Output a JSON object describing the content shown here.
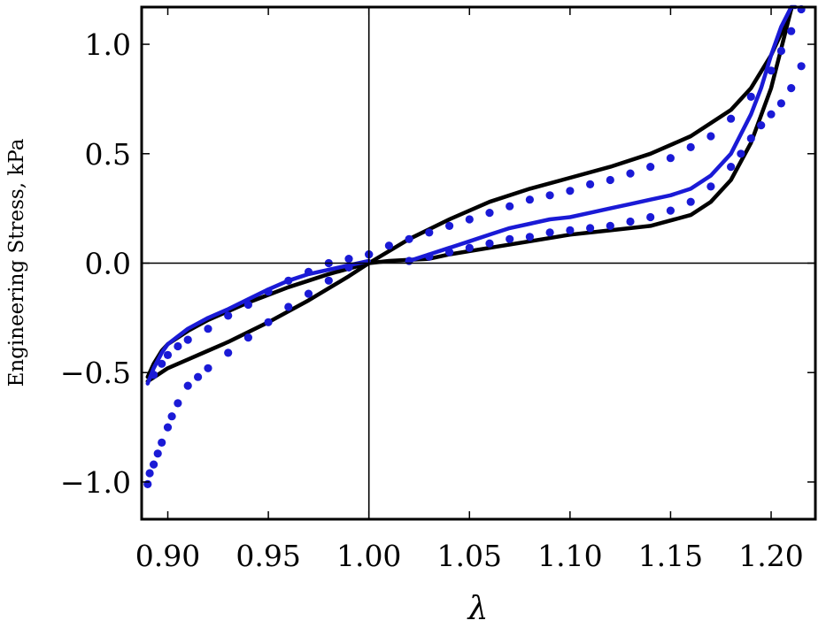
{
  "chart_data": {
    "type": "line",
    "title": "",
    "xlabel": "λ",
    "ylabel": "Engineering Stress, kPa",
    "xlim": [
      0.887,
      1.222
    ],
    "ylim": [
      -1.17,
      1.17
    ],
    "xticks": [
      0.9,
      0.95,
      1.0,
      1.05,
      1.1,
      1.15,
      1.2
    ],
    "xtick_labels": [
      "0.90",
      "0.95",
      "1.00",
      "1.05",
      "1.10",
      "1.15",
      "1.20"
    ],
    "yticks": [
      -1.0,
      -0.5,
      0.0,
      0.5,
      1.0
    ],
    "ytick_labels": [
      "−1.0",
      "−0.5",
      "0.0",
      "0.5",
      "1.0"
    ],
    "grid": false,
    "legend": "none",
    "colors": {
      "model": "#000000",
      "fit": "#1a1ad6",
      "data": "#1a1ad6"
    },
    "series": [
      {
        "style": "solid",
        "color": "#000000",
        "x": [
          0.89,
          0.895,
          0.9,
          0.91,
          0.92,
          0.93,
          0.95,
          0.97,
          0.99,
          1.0,
          1.02,
          1.04,
          1.06,
          1.08,
          1.1,
          1.12,
          1.14,
          1.16,
          1.18,
          1.19,
          1.2,
          1.205,
          1.21
        ],
        "y": [
          -0.54,
          -0.51,
          -0.48,
          -0.44,
          -0.4,
          -0.36,
          -0.27,
          -0.17,
          -0.06,
          0.0,
          0.11,
          0.2,
          0.28,
          0.34,
          0.39,
          0.44,
          0.5,
          0.58,
          0.7,
          0.8,
          0.95,
          1.05,
          1.16
        ]
      },
      {
        "style": "solid",
        "color": "#000000",
        "x": [
          0.89,
          0.893,
          0.897,
          0.9,
          0.91,
          0.92,
          0.93,
          0.94,
          0.95,
          0.96,
          0.97,
          0.98,
          0.99,
          1.0,
          1.01,
          1.02,
          1.03,
          1.04,
          1.06,
          1.08,
          1.1,
          1.12,
          1.14,
          1.16,
          1.17,
          1.18,
          1.19,
          1.2,
          1.205,
          1.21
        ],
        "y": [
          -0.52,
          -0.46,
          -0.4,
          -0.37,
          -0.31,
          -0.26,
          -0.22,
          -0.18,
          -0.145,
          -0.11,
          -0.08,
          -0.05,
          -0.025,
          0.0,
          0.01,
          0.015,
          0.02,
          0.04,
          0.07,
          0.1,
          0.13,
          0.15,
          0.17,
          0.22,
          0.28,
          0.38,
          0.55,
          0.8,
          0.98,
          1.16
        ]
      },
      {
        "style": "solid",
        "color": "#1a1ad6",
        "x": [
          0.89,
          0.893,
          0.897,
          0.9,
          0.91,
          0.92,
          0.93,
          0.94,
          0.95,
          0.96,
          0.97,
          0.98,
          0.99,
          0.995,
          1.0
        ],
        "y": [
          -0.55,
          -0.48,
          -0.41,
          -0.37,
          -0.3,
          -0.25,
          -0.21,
          -0.165,
          -0.12,
          -0.08,
          -0.05,
          -0.03,
          -0.01,
          0.0,
          0.01
        ]
      },
      {
        "style": "solid",
        "color": "#1a1ad6",
        "x": [
          1.02,
          1.03,
          1.04,
          1.05,
          1.06,
          1.07,
          1.08,
          1.09,
          1.1,
          1.11,
          1.12,
          1.13,
          1.14,
          1.15,
          1.16,
          1.17,
          1.18,
          1.19,
          1.195,
          1.2,
          1.205,
          1.21,
          1.212
        ],
        "y": [
          0.01,
          0.04,
          0.07,
          0.1,
          0.13,
          0.16,
          0.18,
          0.2,
          0.21,
          0.23,
          0.25,
          0.27,
          0.29,
          0.31,
          0.34,
          0.4,
          0.5,
          0.68,
          0.8,
          0.95,
          1.08,
          1.17,
          1.17
        ]
      },
      {
        "style": "dots",
        "color": "#1a1ad6",
        "x": [
          0.89,
          0.891,
          0.893,
          0.895,
          0.897,
          0.9,
          0.902,
          0.905,
          0.91,
          0.915,
          0.92,
          0.93,
          0.94,
          0.95,
          0.96,
          0.97,
          0.98,
          0.99,
          1.0,
          1.01,
          1.02,
          1.03,
          1.04,
          1.05,
          1.06,
          1.07,
          1.08,
          1.09,
          1.1,
          1.11,
          1.12,
          1.13,
          1.14,
          1.15,
          1.16,
          1.17,
          1.18,
          1.19,
          1.2,
          1.205,
          1.21,
          1.215
        ],
        "y": [
          -1.01,
          -0.96,
          -0.92,
          -0.87,
          -0.82,
          -0.75,
          -0.7,
          -0.64,
          -0.56,
          -0.52,
          -0.48,
          -0.41,
          -0.34,
          -0.27,
          -0.2,
          -0.14,
          -0.08,
          -0.02,
          0.04,
          0.08,
          0.11,
          0.14,
          0.17,
          0.2,
          0.23,
          0.26,
          0.29,
          0.31,
          0.33,
          0.36,
          0.38,
          0.41,
          0.44,
          0.48,
          0.53,
          0.58,
          0.66,
          0.76,
          0.88,
          0.97,
          1.06,
          1.16
        ]
      },
      {
        "style": "dots",
        "color": "#1a1ad6",
        "x": [
          0.893,
          0.897,
          0.9,
          0.905,
          0.91,
          0.92,
          0.93,
          0.94,
          0.95,
          0.96,
          0.97,
          0.98,
          0.99,
          1.0,
          1.02,
          1.03,
          1.04,
          1.05,
          1.06,
          1.07,
          1.08,
          1.09,
          1.1,
          1.11,
          1.12,
          1.13,
          1.14,
          1.15,
          1.16,
          1.17,
          1.18,
          1.185,
          1.19,
          1.195,
          1.2,
          1.205,
          1.21,
          1.215
        ],
        "y": [
          -0.51,
          -0.46,
          -0.42,
          -0.38,
          -0.35,
          -0.3,
          -0.24,
          -0.19,
          -0.13,
          -0.08,
          -0.04,
          0.0,
          0.02,
          0.04,
          0.01,
          0.03,
          0.05,
          0.07,
          0.09,
          0.11,
          0.12,
          0.14,
          0.15,
          0.16,
          0.17,
          0.19,
          0.21,
          0.24,
          0.28,
          0.35,
          0.44,
          0.5,
          0.57,
          0.63,
          0.68,
          0.73,
          0.8,
          0.9
        ]
      }
    ]
  }
}
